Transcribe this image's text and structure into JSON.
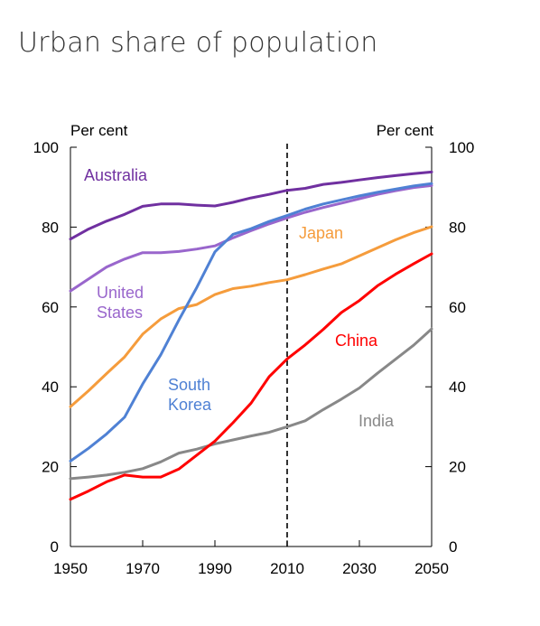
{
  "page": {
    "title": "Urban share of population"
  },
  "chart_data": {
    "type": "line",
    "xlim": [
      1950,
      2050
    ],
    "ylim": [
      0,
      100
    ],
    "x_ticks": [
      1950,
      1970,
      1990,
      2010,
      2030,
      2050
    ],
    "y_ticks": [
      0,
      20,
      40,
      60,
      80,
      100
    ],
    "y_unit_left": "Per cent",
    "y_unit_right": "Per cent",
    "marker_line_x": 2010,
    "grid": false,
    "colors": {
      "Australia": "#7030a0",
      "United States": "#9966cc",
      "South Korea": "#4f81d4",
      "Japan": "#f59c3c",
      "China": "#ff0000",
      "India": "#888888"
    },
    "series": [
      {
        "name": "Australia",
        "label_lines": [
          "Australia"
        ],
        "x": [
          1950,
          1955,
          1960,
          1965,
          1970,
          1975,
          1980,
          1985,
          1990,
          1995,
          2000,
          2005,
          2010,
          2015,
          2020,
          2025,
          2030,
          2035,
          2040,
          2045,
          2050
        ],
        "values": [
          77,
          79.5,
          81.5,
          83.2,
          85.2,
          85.8,
          85.8,
          85.5,
          85.3,
          86.2,
          87.3,
          88.2,
          89.2,
          89.7,
          90.7,
          91.2,
          91.8,
          92.4,
          92.9,
          93.4,
          93.8
        ]
      },
      {
        "name": "United States",
        "label_lines": [
          "United",
          "States"
        ],
        "x": [
          1950,
          1955,
          1960,
          1965,
          1970,
          1975,
          1980,
          1985,
          1990,
          1995,
          2000,
          2005,
          2010,
          2015,
          2020,
          2025,
          2030,
          2035,
          2040,
          2045,
          2050
        ],
        "values": [
          64,
          67,
          70,
          72,
          73.6,
          73.6,
          73.9,
          74.5,
          75.3,
          77.3,
          79.1,
          80.8,
          82.3,
          83.7,
          84.9,
          86,
          87.1,
          88.2,
          89.1,
          89.9,
          90.4
        ]
      },
      {
        "name": "South Korea",
        "label_lines": [
          "South",
          "Korea"
        ],
        "x": [
          1950,
          1955,
          1960,
          1965,
          1970,
          1975,
          1980,
          1985,
          1990,
          1995,
          2000,
          2005,
          2010,
          2015,
          2020,
          2025,
          2030,
          2035,
          2040,
          2045,
          2050
        ],
        "values": [
          21.4,
          24.6,
          28.2,
          32.4,
          40.7,
          48,
          56.7,
          64.9,
          73.8,
          78.2,
          79.6,
          81.4,
          82.9,
          84.5,
          85.8,
          86.8,
          87.8,
          88.7,
          89.5,
          90.3,
          90.9
        ]
      },
      {
        "name": "Japan",
        "label_lines": [
          "Japan"
        ],
        "x": [
          1950,
          1955,
          1960,
          1965,
          1970,
          1975,
          1980,
          1985,
          1990,
          1995,
          2000,
          2005,
          2010,
          2015,
          2020,
          2025,
          2030,
          2035,
          2040,
          2045,
          2050
        ],
        "values": [
          35,
          39,
          43.3,
          47.5,
          53.2,
          57,
          59.6,
          60.6,
          63.1,
          64.6,
          65.2,
          66.1,
          66.8,
          68.1,
          69.5,
          70.8,
          72.8,
          74.8,
          76.8,
          78.6,
          80.1
        ]
      },
      {
        "name": "China",
        "label_lines": [
          "China"
        ],
        "x": [
          1950,
          1955,
          1960,
          1965,
          1970,
          1975,
          1980,
          1985,
          1990,
          1995,
          2000,
          2005,
          2010,
          2015,
          2020,
          2025,
          2030,
          2035,
          2040,
          2045,
          2050
        ],
        "values": [
          11.8,
          13.9,
          16.2,
          17.9,
          17.4,
          17.4,
          19.4,
          22.9,
          26.4,
          31,
          35.9,
          42.5,
          47,
          50.5,
          54.4,
          58.6,
          61.6,
          65.3,
          68.2,
          70.8,
          73.3
        ]
      },
      {
        "name": "India",
        "label_lines": [
          "India"
        ],
        "x": [
          1950,
          1955,
          1960,
          1965,
          1970,
          1975,
          1980,
          1985,
          1990,
          1995,
          2000,
          2005,
          2010,
          2015,
          2020,
          2025,
          2030,
          2035,
          2040,
          2045,
          2050
        ],
        "values": [
          17,
          17.4,
          17.9,
          18.6,
          19.5,
          21.2,
          23.4,
          24.4,
          25.7,
          26.7,
          27.7,
          28.6,
          30,
          31.5,
          34.3,
          36.9,
          39.7,
          43.4,
          46.9,
          50.4,
          54.5
        ]
      }
    ]
  }
}
